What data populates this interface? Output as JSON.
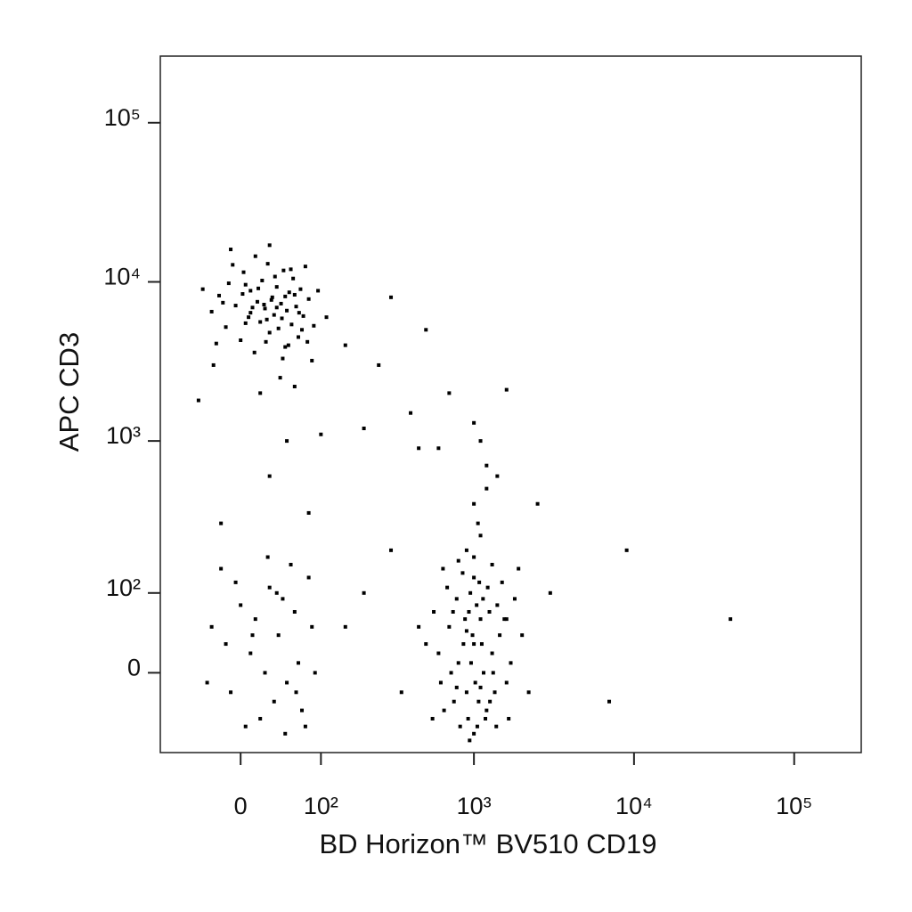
{
  "chart_data": {
    "type": "scatter",
    "x_label": "BD Horizon™ BV510  CD19",
    "y_label": "APC  CD3",
    "scale": "biexponential",
    "color": "#000000",
    "xlim": [
      -100,
      262144
    ],
    "ylim": [
      -100,
      262144
    ],
    "xticks": [
      0,
      {
        "value": 100,
        "label": "10²"
      },
      {
        "value": 1000,
        "label": "10³"
      },
      {
        "value": 10000,
        "label": "10⁴"
      },
      {
        "value": 100000,
        "label": "10⁵"
      }
    ],
    "yticks": [
      0,
      {
        "value": 100,
        "label": "10²"
      },
      {
        "value": 1000,
        "label": "10³"
      },
      {
        "value": 10000,
        "label": "10⁴"
      },
      {
        "value": 100000,
        "label": "10⁵"
      }
    ],
    "x": [
      -30,
      -22,
      -15,
      -12,
      -5,
      0,
      3,
      8,
      10,
      14,
      17,
      20,
      22,
      25,
      28,
      30,
      33,
      35,
      38,
      40,
      43,
      46,
      48,
      50,
      53,
      56,
      58,
      62,
      65,
      68,
      72,
      75,
      80,
      88,
      -25,
      -8,
      5,
      12,
      18,
      26,
      32,
      36,
      44,
      52,
      60,
      70,
      -18,
      2,
      15,
      24,
      45,
      55,
      66,
      78,
      -40,
      95,
      -28,
      42,
      20,
      -45,
      60,
      85,
      30,
      -10,
      110,
      5,
      38,
      27,
      10,
      48,
      1000,
      900,
      1100,
      800,
      1200,
      700,
      1300,
      950,
      1050,
      850,
      1150,
      750,
      1400,
      600,
      1600,
      1000,
      920,
      1080,
      780,
      1250,
      650,
      1350,
      980,
      1020,
      880,
      1120,
      720,
      1450,
      560,
      1700,
      900,
      1100,
      1000,
      820,
      1180,
      500,
      2000,
      1500,
      680,
      1300,
      960,
      1040,
      860,
      1140,
      740,
      1260,
      620,
      1550,
      1000,
      930,
      1070,
      800,
      1220,
      450,
      2200,
      1800,
      640,
      1380,
      1060,
      940,
      1900,
      550,
      1650,
      1000,
      1200,
      1600,
      1100,
      900,
      780,
      1320,
      -30,
      -10,
      0,
      10,
      20,
      30,
      40,
      50,
      60,
      70,
      80,
      -20,
      5,
      15,
      25,
      35,
      45,
      55,
      65,
      75,
      85,
      -35,
      -5,
      28,
      48,
      12,
      38,
      62,
      -15,
      90,
      300,
      150,
      250,
      500,
      700,
      1000,
      1100,
      400,
      200,
      600,
      1400,
      1200,
      300,
      200,
      350,
      150,
      9000,
      40000,
      7000,
      2500,
      1600,
      450,
      3000,
      -20,
      30,
      80,
      50,
      100
    ],
    "values": [
      6500,
      8200,
      5200,
      9800,
      7100,
      4300,
      11500,
      6000,
      8800,
      3600,
      7500,
      5600,
      10200,
      6800,
      13000,
      4800,
      8000,
      6200,
      9300,
      5100,
      7300,
      11800,
      3900,
      6600,
      8600,
      5400,
      10500,
      7000,
      4500,
      9000,
      6100,
      12500,
      7800,
      5300,
      4100,
      12800,
      5500,
      6900,
      9100,
      4200,
      7700,
      10800,
      5900,
      4000,
      8300,
      5000,
      7400,
      8400,
      14500,
      7200,
      3300,
      12000,
      6400,
      4200,
      9000,
      8800,
      3000,
      2500,
      2000,
      1800,
      2200,
      3200,
      17000,
      16000,
      6000,
      9600,
      6900,
      5800,
      6400,
      8100,
      30,
      -20,
      60,
      10,
      -40,
      50,
      20,
      100,
      -60,
      140,
      0,
      -30,
      80,
      20,
      -10,
      180,
      -50,
      120,
      90,
      70,
      -40,
      -20,
      40,
      -10,
      60,
      30,
      0,
      40,
      70,
      10,
      200,
      250,
      -70,
      -60,
      -50,
      30,
      40,
      120,
      110,
      160,
      10,
      80,
      30,
      90,
      70,
      -30,
      -10,
      60,
      130,
      70,
      -30,
      170,
      110,
      50,
      -20,
      90,
      150,
      -60,
      300,
      -80,
      150,
      -50,
      -50,
      400,
      700,
      60,
      -15,
      45,
      -15,
      0,
      50,
      -20,
      80,
      20,
      -50,
      110,
      40,
      -10,
      70,
      -40,
      130,
      150,
      -60,
      60,
      0,
      -30,
      90,
      160,
      10,
      -60,
      50,
      -10,
      120,
      180,
      -70,
      40,
      100,
      -20,
      30,
      0,
      8000,
      4000,
      3000,
      5000,
      2000,
      1300,
      1000,
      1500,
      1200,
      900,
      600,
      500,
      200,
      100,
      -20,
      50,
      200,
      60,
      -30,
      400,
      2100,
      900,
      100,
      300,
      600,
      350,
      1000,
      1100
    ]
  }
}
